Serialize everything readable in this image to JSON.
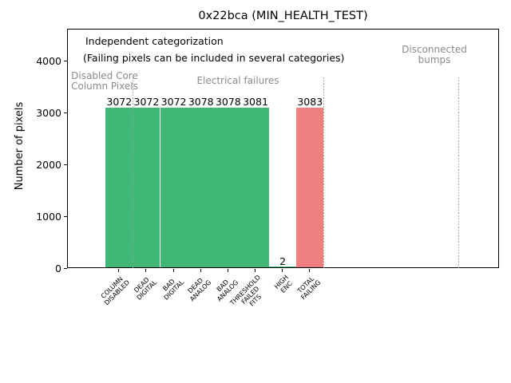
{
  "figure": {
    "title": "0x22bca (MIN_HEALTH_TEST)",
    "ylabel": "Number of pixels",
    "annotation_line1": "Independent categorization",
    "annotation_line2": "(Failing pixels can be included in several categories)"
  },
  "chart_data": {
    "type": "bar",
    "title": "0x22bca (MIN_HEALTH_TEST)",
    "xlabel": "",
    "ylabel": "Number of pixels",
    "categories": [
      "COLUMN\nDISABLED",
      "DEAD\nDIGITAL",
      "BAD\nDIGITAL",
      "DEAD\nANALOG",
      "BAD\nANALOG",
      "THRESHOLD\nFAILED\nFITS",
      "HIGH\nENC",
      "TOTAL\nFAILING"
    ],
    "values": [
      3072,
      3072,
      3072,
      3078,
      3078,
      3081,
      2,
      3083
    ],
    "value_labels": [
      "3072",
      "3072",
      "3072",
      "3078",
      "3078",
      "3081",
      "2",
      "3083"
    ],
    "bar_colors": [
      "#3fb878",
      "#3fb878",
      "#3fb878",
      "#3fb878",
      "#3fb878",
      "#3fb878",
      "#3fb878",
      "#f08080"
    ],
    "yticks": [
      0,
      1000,
      2000,
      3000,
      4000
    ],
    "ytick_labels": [
      "0",
      "1000",
      "2000",
      "3000",
      "4000"
    ],
    "ylim": [
      0,
      4615
    ],
    "grid": false,
    "legend": null,
    "annotations": [
      "Independent categorization",
      "(Failing pixels can be included in several categories)"
    ],
    "group_labels": [
      "Disabled Core\nColumn Pixels",
      "Electrical failures",
      "Disconnected\nbumps"
    ],
    "separator_positions": [
      0.5,
      7.5,
      12.45
    ],
    "colors": {
      "bar_green": "#3fb878",
      "bar_red": "#f08080",
      "separator_gray": "#999999",
      "group_label_gray": "#8a8a8a",
      "spine": "#000000"
    }
  }
}
